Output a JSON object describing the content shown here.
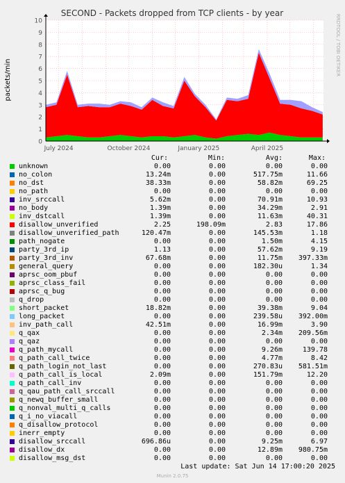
{
  "chart_data": {
    "type": "area",
    "title": "SECOND - Packets dropped from TCP clients - by year",
    "ylabel": "packets/min",
    "side_label": "RRDTOOL / TOBI OETIKER",
    "ylim": [
      0,
      10
    ],
    "y_ticks": [
      "0",
      "1",
      "2",
      "3",
      "4",
      "5",
      "6",
      "7",
      "8",
      "9",
      "10"
    ],
    "x_ticks": [
      "July 2024",
      "October 2024",
      "January 2025",
      "April 2025"
    ],
    "x": [
      "2024-06-14",
      "2024-06-28",
      "2024-07-12",
      "2024-07-26",
      "2024-08-09",
      "2024-08-23",
      "2024-09-06",
      "2024-09-20",
      "2024-10-04",
      "2024-10-18",
      "2024-11-01",
      "2024-11-15",
      "2024-11-29",
      "2024-12-13",
      "2024-12-27",
      "2025-01-10",
      "2025-01-24",
      "2025-02-07",
      "2025-02-21",
      "2025-03-07",
      "2025-03-21",
      "2025-04-04",
      "2025-04-18",
      "2025-05-02",
      "2025-05-16",
      "2025-05-30",
      "2025-06-13"
    ],
    "series": [
      {
        "name": "no_colon",
        "color": "#00cc00",
        "values": [
          0.3,
          0.4,
          0.5,
          0.4,
          0.3,
          0.3,
          0.4,
          0.5,
          0.4,
          0.3,
          0.4,
          0.4,
          0.3,
          0.4,
          0.5,
          0.3,
          0.2,
          0.4,
          0.5,
          0.6,
          0.5,
          0.7,
          0.5,
          0.4,
          0.3,
          0.3,
          0.3
        ]
      },
      {
        "name": "disallow_unverified",
        "color": "#ff0000",
        "values": [
          2.5,
          2.6,
          5.0,
          2.4,
          2.6,
          2.5,
          2.4,
          2.6,
          2.5,
          2.3,
          3.0,
          2.5,
          2.4,
          4.6,
          3.2,
          2.5,
          1.5,
          3.0,
          2.8,
          2.9,
          6.8,
          4.5,
          2.6,
          2.6,
          2.4,
          2.2,
          1.9
        ]
      },
      {
        "name": "short_packet",
        "color": "#a0a0ff",
        "values": [
          0.2,
          0.2,
          0.3,
          0.2,
          0.2,
          0.3,
          0.2,
          0.2,
          0.3,
          0.2,
          0.2,
          0.3,
          0.2,
          0.3,
          0.2,
          0.2,
          0.1,
          0.2,
          0.2,
          0.3,
          0.3,
          0.4,
          0.3,
          0.4,
          0.6,
          0.3,
          0.2
        ]
      }
    ],
    "legend": {
      "headers": [
        "Cur:",
        "Min:",
        "Avg:",
        "Max:"
      ],
      "rows": [
        {
          "name": "unknown",
          "color": "#00cc00",
          "cur": "0.00",
          "min": "0.00",
          "avg": "0.00",
          "max": "0.00"
        },
        {
          "name": "no_colon",
          "color": "#0066b3",
          "cur": "13.24m",
          "min": "0.00",
          "avg": "517.75m",
          "max": "11.66"
        },
        {
          "name": "no_dst",
          "color": "#ff8000",
          "cur": "38.33m",
          "min": "0.00",
          "avg": "58.82m",
          "max": "69.25"
        },
        {
          "name": "no_path",
          "color": "#ffcc00",
          "cur": "0.00",
          "min": "0.00",
          "avg": "0.00",
          "max": "0.00"
        },
        {
          "name": "inv_srccall",
          "color": "#330099",
          "cur": "5.62m",
          "min": "0.00",
          "avg": "70.91m",
          "max": "10.93"
        },
        {
          "name": "no_body",
          "color": "#990099",
          "cur": "1.39m",
          "min": "0.00",
          "avg": "34.29m",
          "max": "2.91"
        },
        {
          "name": "inv_dstcall",
          "color": "#ccff00",
          "cur": "1.39m",
          "min": "0.00",
          "avg": "11.63m",
          "max": "40.31"
        },
        {
          "name": "disallow_unverified",
          "color": "#ff0000",
          "cur": "2.25",
          "min": "198.09m",
          "avg": "2.83",
          "max": "17.86"
        },
        {
          "name": "disallow_unverified_path",
          "color": "#808080",
          "cur": "120.47m",
          "min": "0.00",
          "avg": "145.53m",
          "max": "1.18"
        },
        {
          "name": "path_nogate",
          "color": "#008f00",
          "cur": "0.00",
          "min": "0.00",
          "avg": "1.50m",
          "max": "4.15"
        },
        {
          "name": "party_3rd_ip",
          "color": "#00487d",
          "cur": "1.13",
          "min": "0.00",
          "avg": "57.62m",
          "max": "9.19"
        },
        {
          "name": "party_3rd_inv",
          "color": "#b35a00",
          "cur": "67.68m",
          "min": "0.00",
          "avg": "11.75m",
          "max": "397.33m"
        },
        {
          "name": "general_query",
          "color": "#b38f00",
          "cur": "0.00",
          "min": "0.00",
          "avg": "182.30u",
          "max": "1.34"
        },
        {
          "name": "aprsc_oom_pbuf",
          "color": "#6b006b",
          "cur": "0.00",
          "min": "0.00",
          "avg": "0.00",
          "max": "0.00"
        },
        {
          "name": "aprsc_class_fail",
          "color": "#8fb300",
          "cur": "0.00",
          "min": "0.00",
          "avg": "0.00",
          "max": "0.00"
        },
        {
          "name": "aprsc_q_bug",
          "color": "#b30000",
          "cur": "0.00",
          "min": "0.00",
          "avg": "0.00",
          "max": "0.00"
        },
        {
          "name": "q_drop",
          "color": "#bebebe",
          "cur": "0.00",
          "min": "0.00",
          "avg": "0.00",
          "max": "0.00"
        },
        {
          "name": "short_packet",
          "color": "#80ff80",
          "cur": "18.82m",
          "min": "0.00",
          "avg": "39.38m",
          "max": "9.04"
        },
        {
          "name": "long_packet",
          "color": "#80c9ff",
          "cur": "0.00",
          "min": "0.00",
          "avg": "239.58u",
          "max": "392.00m"
        },
        {
          "name": "inv_path_call",
          "color": "#ffc080",
          "cur": "42.51m",
          "min": "0.00",
          "avg": "16.99m",
          "max": "3.90"
        },
        {
          "name": "q_qax",
          "color": "#ffe680",
          "cur": "0.00",
          "min": "0.00",
          "avg": "2.34m",
          "max": "209.56m"
        },
        {
          "name": "q_qaz",
          "color": "#aa80ff",
          "cur": "0.00",
          "min": "0.00",
          "avg": "0.00",
          "max": "0.00"
        },
        {
          "name": "q_path_mycall",
          "color": "#ee00cc",
          "cur": "0.00",
          "min": "0.00",
          "avg": "9.26m",
          "max": "139.78"
        },
        {
          "name": "q_path_call_twice",
          "color": "#ff8080",
          "cur": "0.00",
          "min": "0.00",
          "avg": "4.77m",
          "max": "8.42"
        },
        {
          "name": "q_path_login_not_last",
          "color": "#666600",
          "cur": "0.00",
          "min": "0.00",
          "avg": "270.83u",
          "max": "581.51m"
        },
        {
          "name": "q_path_call_is_local",
          "color": "#ffbfff",
          "cur": "2.09m",
          "min": "0.00",
          "avg": "151.79m",
          "max": "12.20"
        },
        {
          "name": "q_path_call_inv",
          "color": "#00ffcc",
          "cur": "0.00",
          "min": "0.00",
          "avg": "0.00",
          "max": "0.00"
        },
        {
          "name": "q_qau_path_call_srccall",
          "color": "#cc6699",
          "cur": "0.00",
          "min": "0.00",
          "avg": "0.00",
          "max": "0.00"
        },
        {
          "name": "q_newq_buffer_small",
          "color": "#999900",
          "cur": "0.00",
          "min": "0.00",
          "avg": "0.00",
          "max": "0.00"
        },
        {
          "name": "q_nonval_multi_q_calls",
          "color": "#00cc00",
          "cur": "0.00",
          "min": "0.00",
          "avg": "0.00",
          "max": "0.00"
        },
        {
          "name": "q_i_no_viacall",
          "color": "#0066b3",
          "cur": "0.00",
          "min": "0.00",
          "avg": "0.00",
          "max": "0.00"
        },
        {
          "name": "q_disallow_protocol",
          "color": "#ff8000",
          "cur": "0.00",
          "min": "0.00",
          "avg": "0.00",
          "max": "0.00"
        },
        {
          "name": "inerr_empty",
          "color": "#ffcc00",
          "cur": "0.00",
          "min": "0.00",
          "avg": "0.00",
          "max": "0.00"
        },
        {
          "name": "disallow_srccall",
          "color": "#330099",
          "cur": "696.86u",
          "min": "0.00",
          "avg": "9.25m",
          "max": "6.97"
        },
        {
          "name": "disallow_dx",
          "color": "#990099",
          "cur": "0.00",
          "min": "0.00",
          "avg": "12.89m",
          "max": "980.75m"
        },
        {
          "name": "disallow_msg_dst",
          "color": "#ccff00",
          "cur": "0.00",
          "min": "0.00",
          "avg": "0.00",
          "max": "0.00"
        }
      ]
    }
  },
  "footer": {
    "last_update": "Last update: Sat Jun 14 17:00:20 2025",
    "version": "Munin 2.0.75"
  }
}
